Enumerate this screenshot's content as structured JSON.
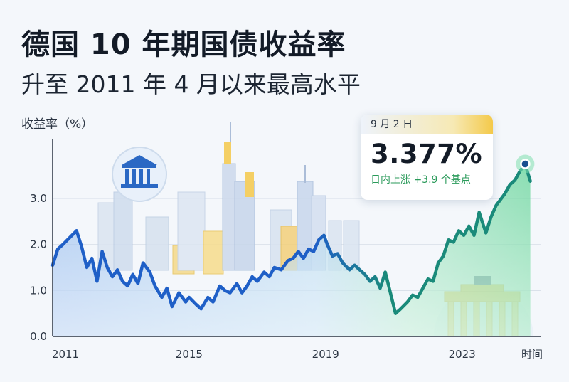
{
  "header": {
    "title": "德国 10 年期国债收益率",
    "subtitle": "升至 2011 年 4 月以来最高水平"
  },
  "callout": {
    "date": "9 月 2 日",
    "value": "3.377%",
    "change": "日内上涨 +3.9 个基点"
  },
  "colors": {
    "line_blue": "#1f5fc7",
    "line_teal": "#1a8a7a",
    "area_green": "#5ccf8a",
    "accent_gold": "#f4c94a"
  },
  "chart_data": {
    "type": "area",
    "xlabel": "时间",
    "ylabel": "收益率（%）",
    "xlim": [
      2011.0,
      2025.3
    ],
    "ylim": [
      0,
      4.3
    ],
    "x_ticks": [
      {
        "value": 2011,
        "label": "2011"
      },
      {
        "value": 2015,
        "label": "2015"
      },
      {
        "value": 2019,
        "label": "2019"
      },
      {
        "value": 2023,
        "label": "2023"
      }
    ],
    "y_ticks": [
      {
        "value": 0,
        "label": "0.0"
      },
      {
        "value": 1,
        "label": "1.0"
      },
      {
        "value": 2,
        "label": "2.0"
      },
      {
        "value": 3,
        "label": "3.0"
      }
    ],
    "grid": true,
    "series": [
      {
        "x": [
          2011.0,
          2011.15,
          2011.3,
          2011.5,
          2011.7,
          2011.85,
          2012.0,
          2012.15,
          2012.3,
          2012.45,
          2012.6,
          2012.75,
          2012.9,
          2013.05,
          2013.2,
          2013.35,
          2013.5,
          2013.65,
          2013.85,
          2014.0,
          2014.2,
          2014.35,
          2014.5,
          2014.7,
          2014.9,
          2015.0,
          2015.2,
          2015.35,
          2015.55,
          2015.7,
          2015.9,
          2016.05,
          2016.2,
          2016.4,
          2016.55,
          2016.7,
          2016.85,
          2017.0,
          2017.2,
          2017.35,
          2017.5,
          2017.7,
          2017.9,
          2018.05,
          2018.2,
          2018.35,
          2018.5,
          2018.65,
          2018.8,
          2018.95,
          2019.05,
          2019.2,
          2019.35,
          2019.5,
          2019.7,
          2019.85,
          2020.0,
          2020.15,
          2020.3,
          2020.45,
          2020.6,
          2020.75,
          2020.9,
          2021.05,
          2021.2,
          2021.4,
          2021.55,
          2021.7,
          2021.85,
          2022.0,
          2022.15,
          2022.3,
          2022.45,
          2022.6,
          2022.75,
          2022.9,
          2023.05,
          2023.2,
          2023.35,
          2023.5,
          2023.7,
          2023.85,
          2024.0,
          2024.1,
          2024.25,
          2024.4,
          2024.55,
          2024.7,
          2024.85,
          2025.0
        ],
        "y": [
          1.55,
          1.9,
          2.0,
          2.15,
          2.3,
          1.95,
          1.5,
          1.7,
          1.2,
          1.85,
          1.5,
          1.3,
          1.45,
          1.2,
          1.1,
          1.35,
          1.15,
          1.6,
          1.4,
          1.1,
          0.85,
          1.05,
          0.65,
          0.95,
          0.75,
          0.85,
          0.7,
          0.6,
          0.85,
          0.75,
          1.1,
          1.0,
          0.95,
          1.15,
          0.95,
          1.1,
          1.3,
          1.2,
          1.4,
          1.3,
          1.5,
          1.45,
          1.65,
          1.7,
          1.85,
          1.7,
          1.9,
          1.85,
          2.1,
          2.2,
          2.0,
          1.75,
          1.8,
          1.6,
          1.45,
          1.55,
          1.45,
          1.35,
          1.2,
          1.3,
          1.05,
          1.4,
          0.95,
          0.5,
          0.6,
          0.75,
          0.9,
          0.85,
          1.05,
          1.25,
          1.2,
          1.6,
          1.75,
          2.1,
          2.05,
          2.3,
          2.2,
          2.4,
          2.2,
          2.7,
          2.25,
          2.6,
          2.85,
          2.95,
          3.1,
          3.3,
          3.4,
          3.6,
          3.75,
          3.377
        ]
      }
    ]
  }
}
